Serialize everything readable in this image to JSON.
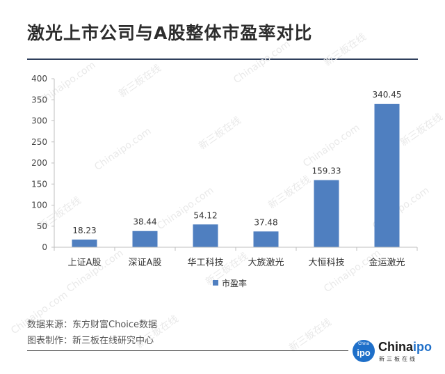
{
  "title": "激光上市公司与A股整体市盈率对比",
  "chart_data": {
    "type": "bar",
    "title": "激光上市公司与A股整体市盈率对比",
    "categories": [
      "上证A股",
      "深证A股",
      "华工科技",
      "大族激光",
      "大恒科技",
      "金运激光"
    ],
    "series": [
      {
        "name": "市盈率",
        "values": [
          18.23,
          38.44,
          54.12,
          37.48,
          159.33,
          340.45
        ]
      }
    ],
    "value_labels": [
      "18.23",
      "38.44",
      "54.12",
      "37.48",
      "159.33",
      "340.45"
    ],
    "ylim": [
      0,
      400
    ],
    "yticks": [
      0,
      50,
      100,
      150,
      200,
      250,
      300,
      350,
      400
    ],
    "xlabel": "",
    "ylabel": "",
    "grid": false,
    "legend_position": "bottom",
    "bar_color": "#4f7fc0"
  },
  "source": {
    "line1": "数据来源：东方财富Choice数据",
    "line2": "图表制作：新三板在线研究中心"
  },
  "logo": {
    "badge_small": "China",
    "badge_main": "ipo",
    "name_main": "China",
    "name_accent": "ipo",
    "subtitle": "新三板在线"
  },
  "watermark": {
    "text_a": "Chinaipo.com",
    "text_b": "新三板在线"
  }
}
